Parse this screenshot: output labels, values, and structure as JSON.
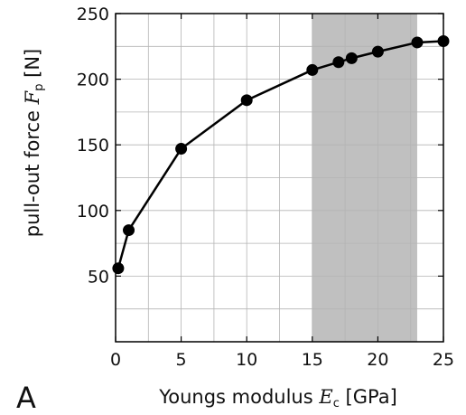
{
  "panel_label": "A",
  "chart_data": {
    "type": "line",
    "title": "",
    "xlabel": {
      "prefix": "Youngs modulus ",
      "symbol": "E",
      "subscript": "c",
      "unit": " [GPa]"
    },
    "ylabel": {
      "prefix": "pull-out force ",
      "symbol": "F",
      "subscript": "p",
      "unit": " [N]"
    },
    "xlim": [
      0,
      25
    ],
    "ylim": [
      0,
      250
    ],
    "xticks": [
      0,
      5,
      10,
      15,
      20,
      25
    ],
    "yticks": [
      50,
      100,
      150,
      200,
      250
    ],
    "x_gridlines": [
      2.5,
      5,
      7.5,
      10,
      12.5,
      15,
      17.5,
      20,
      22.5,
      25
    ],
    "y_gridlines": [
      25,
      50,
      75,
      100,
      125,
      150,
      175,
      200,
      225,
      250
    ],
    "grid": true,
    "shaded_region": {
      "x": [
        15,
        23
      ],
      "color": "#c0c0c0"
    },
    "series": [
      {
        "color": "#000000",
        "x": [
          0.2,
          1,
          5,
          10,
          15,
          17,
          18,
          20,
          23,
          25
        ],
        "y": [
          56,
          85,
          147,
          184,
          207,
          213,
          216,
          221,
          228,
          229
        ]
      }
    ]
  }
}
